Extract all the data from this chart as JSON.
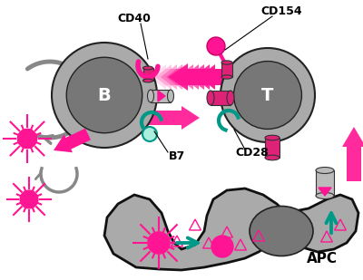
{
  "bg_color": "#ffffff",
  "pink": "#FF1493",
  "pink_light": "#FFB0D0",
  "teal": "#009988",
  "gray_cell": "#999999",
  "gray_inner": "#666666",
  "gray_arc": "#888888",
  "gray_apc": "#aaaaaa",
  "gray_apc_dark": "#888888",
  "black": "#111111",
  "light_teal_ball": "#99EEDD",
  "cd40_label": "CD40",
  "cd154_label": "CD154",
  "b7_label": "B7",
  "cd28_label": "CD28",
  "apc_label": "APC",
  "b_label": "B",
  "t_label": "T"
}
